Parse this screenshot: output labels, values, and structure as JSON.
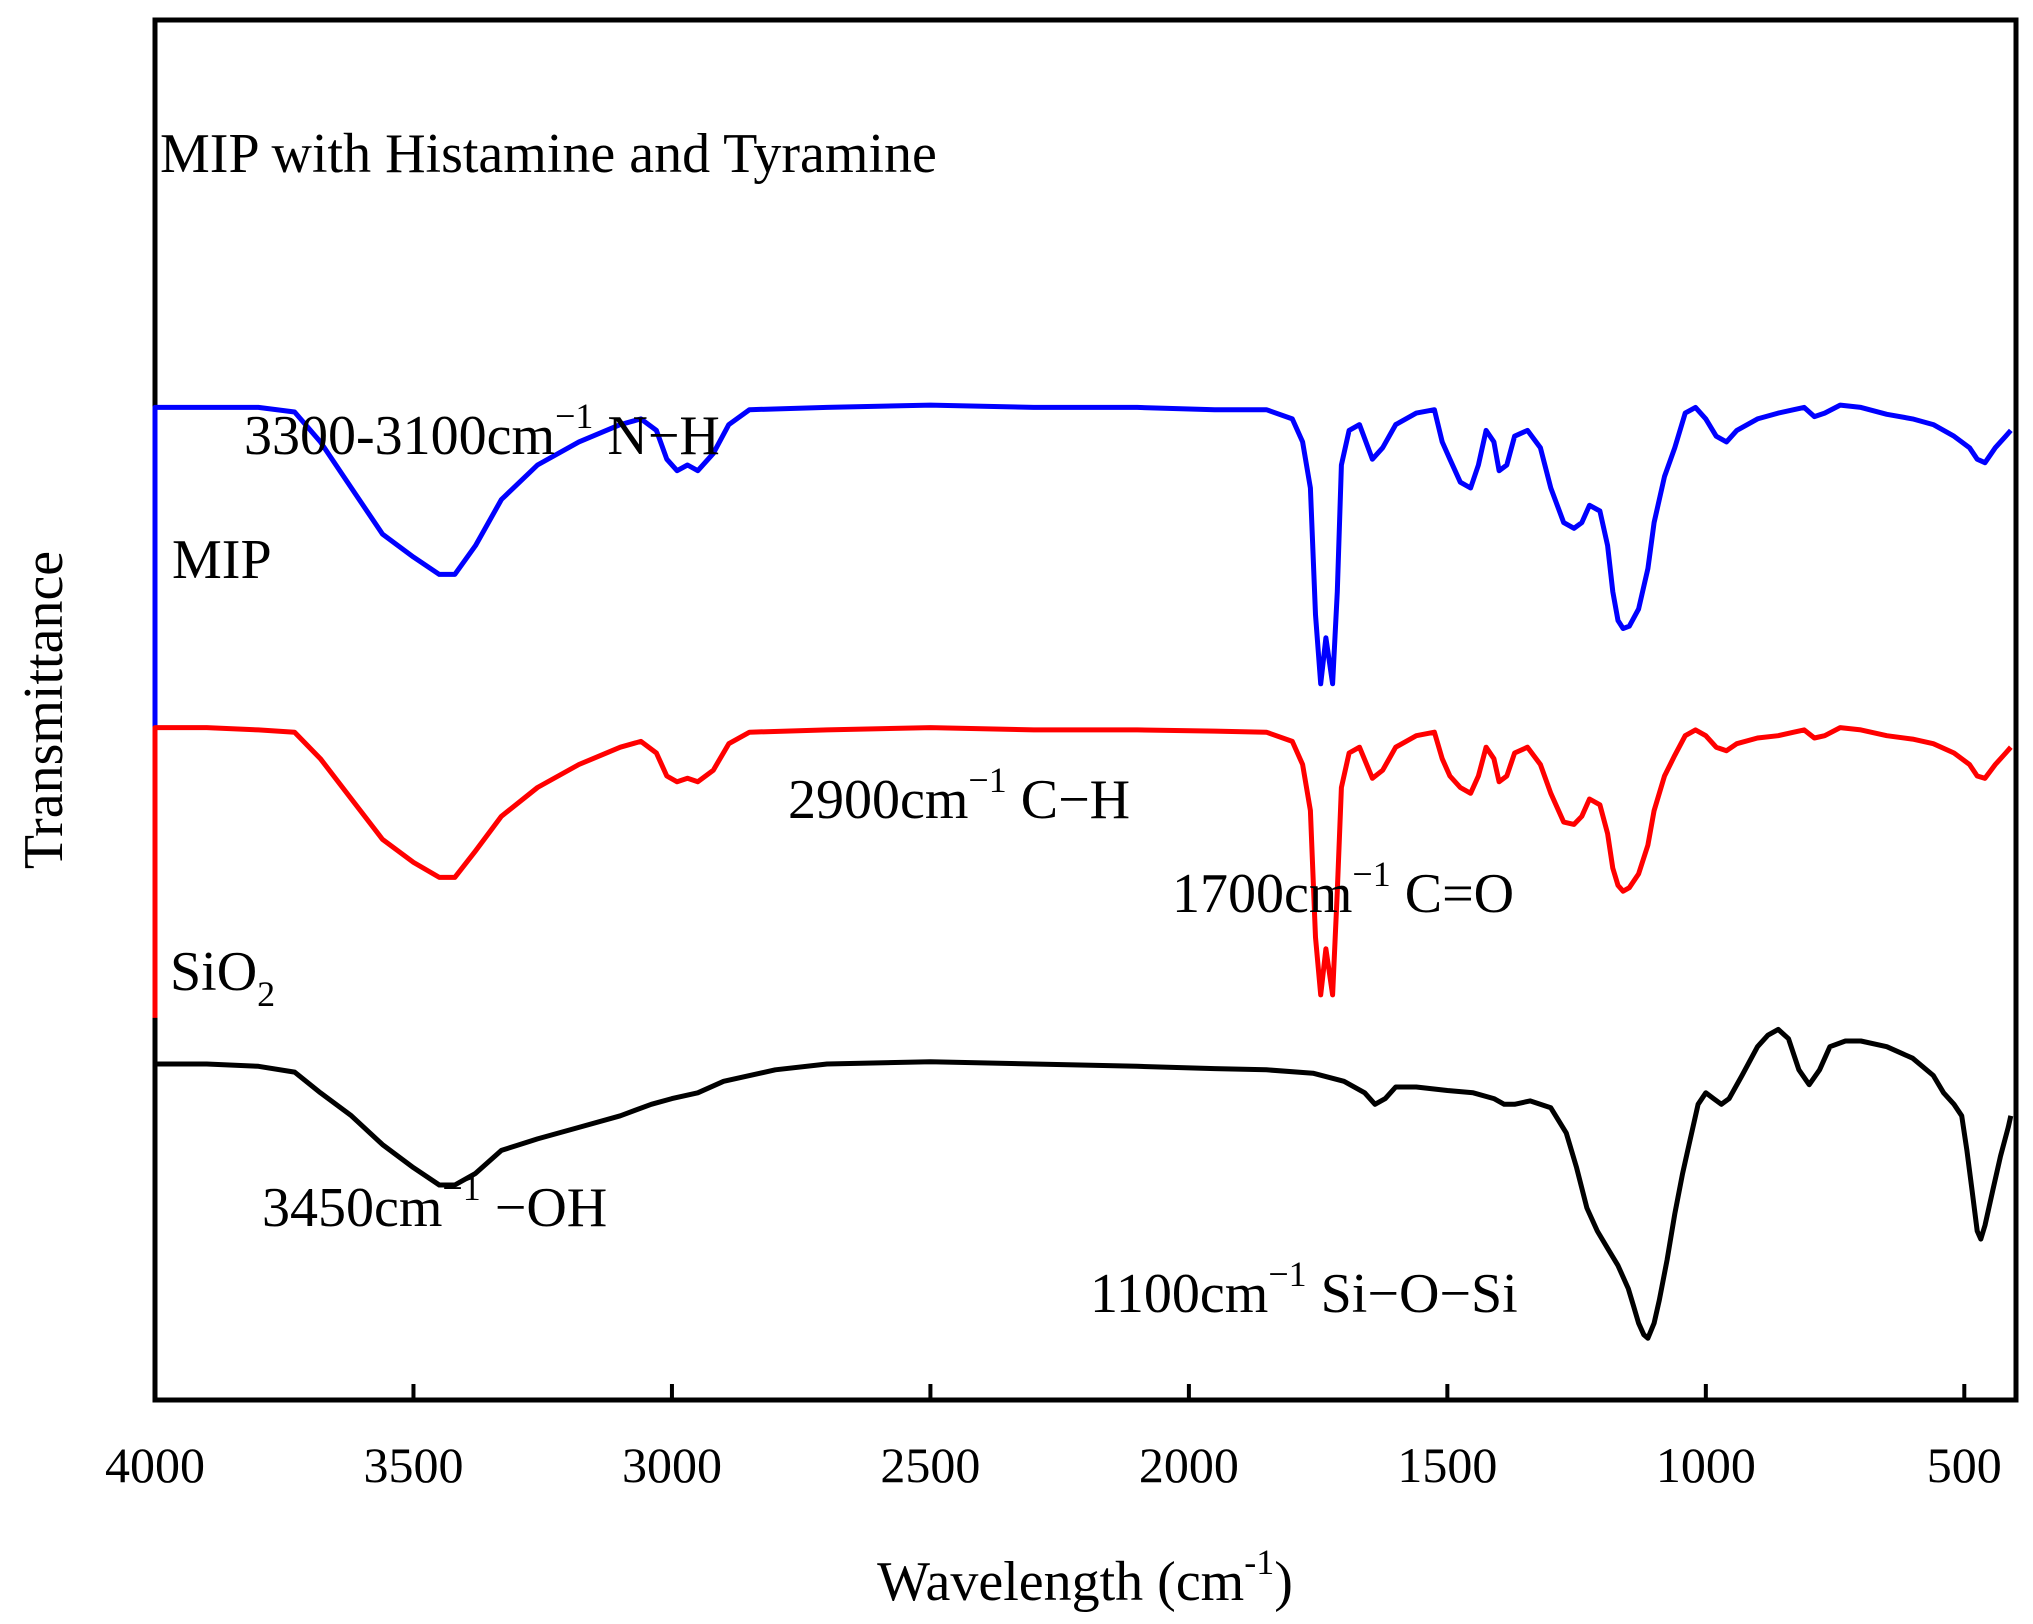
{
  "chart_data": {
    "type": "line",
    "title": "",
    "xlabel": {
      "main": "Wavelength (cm",
      "sup": "-1",
      "close": ")"
    },
    "ylabel": "Transmittance",
    "xlim": [
      4000,
      400
    ],
    "xticks": [
      "4000",
      "3500",
      "3000",
      "2500",
      "2000",
      "1500",
      "1000",
      "500"
    ],
    "xtick_values": [
      4000,
      3500,
      3000,
      2500,
      2000,
      1500,
      1000,
      500
    ],
    "y_units": "arbitrary (offset, larger = higher transmittance)",
    "ylim": [
      0,
      100
    ],
    "grid": false,
    "series": [
      {
        "name": "MIP with Histamine and Tyramine",
        "name_parts": {
          "main": "MIP with Histamine and Tyramine",
          "sub": ""
        },
        "color": "#0000ff",
        "baseline_start": 54,
        "points": [
          [
            4000,
            82
          ],
          [
            3900,
            82
          ],
          [
            3800,
            82
          ],
          [
            3730,
            81.6
          ],
          [
            3680,
            79
          ],
          [
            3620,
            75
          ],
          [
            3560,
            71
          ],
          [
            3500,
            69
          ],
          [
            3450,
            67.5
          ],
          [
            3420,
            67.5
          ],
          [
            3380,
            70
          ],
          [
            3330,
            74
          ],
          [
            3260,
            77
          ],
          [
            3180,
            79
          ],
          [
            3100,
            80.5
          ],
          [
            3060,
            81
          ],
          [
            3030,
            80
          ],
          [
            3010,
            77.5
          ],
          [
            2990,
            76.5
          ],
          [
            2970,
            77
          ],
          [
            2950,
            76.5
          ],
          [
            2920,
            78
          ],
          [
            2890,
            80.5
          ],
          [
            2850,
            81.8
          ],
          [
            2700,
            82
          ],
          [
            2500,
            82.2
          ],
          [
            2300,
            82
          ],
          [
            2100,
            82
          ],
          [
            1950,
            81.8
          ],
          [
            1850,
            81.8
          ],
          [
            1800,
            81
          ],
          [
            1780,
            79
          ],
          [
            1765,
            75
          ],
          [
            1755,
            64
          ],
          [
            1745,
            58
          ],
          [
            1735,
            62
          ],
          [
            1722,
            58
          ],
          [
            1713,
            66
          ],
          [
            1705,
            77
          ],
          [
            1690,
            80
          ],
          [
            1670,
            80.5
          ],
          [
            1645,
            77.5
          ],
          [
            1625,
            78.5
          ],
          [
            1600,
            80.5
          ],
          [
            1560,
            81.5
          ],
          [
            1525,
            81.8
          ],
          [
            1510,
            79
          ],
          [
            1495,
            77.5
          ],
          [
            1475,
            75.5
          ],
          [
            1455,
            75
          ],
          [
            1440,
            77
          ],
          [
            1425,
            80
          ],
          [
            1410,
            79
          ],
          [
            1400,
            76.5
          ],
          [
            1385,
            77
          ],
          [
            1370,
            79.5
          ],
          [
            1345,
            80
          ],
          [
            1320,
            78.5
          ],
          [
            1300,
            75
          ],
          [
            1275,
            72
          ],
          [
            1255,
            71.5
          ],
          [
            1240,
            72
          ],
          [
            1225,
            73.5
          ],
          [
            1205,
            73
          ],
          [
            1190,
            70
          ],
          [
            1180,
            66
          ],
          [
            1170,
            63.5
          ],
          [
            1160,
            62.8
          ],
          [
            1148,
            63
          ],
          [
            1130,
            64.5
          ],
          [
            1112,
            68
          ],
          [
            1100,
            72
          ],
          [
            1080,
            76
          ],
          [
            1060,
            78.5
          ],
          [
            1040,
            81.5
          ],
          [
            1020,
            82
          ],
          [
            1000,
            81
          ],
          [
            980,
            79.5
          ],
          [
            960,
            79
          ],
          [
            940,
            80
          ],
          [
            900,
            81
          ],
          [
            860,
            81.5
          ],
          [
            830,
            81.8
          ],
          [
            810,
            82
          ],
          [
            790,
            81.2
          ],
          [
            770,
            81.5
          ],
          [
            740,
            82.2
          ],
          [
            700,
            82
          ],
          [
            650,
            81.4
          ],
          [
            600,
            81
          ],
          [
            560,
            80.5
          ],
          [
            520,
            79.5
          ],
          [
            490,
            78.5
          ],
          [
            475,
            77.5
          ],
          [
            460,
            77.2
          ],
          [
            440,
            78.5
          ],
          [
            420,
            79.5
          ],
          [
            410,
            80
          ]
        ]
      },
      {
        "name": "MIP",
        "name_parts": {
          "main": "MIP",
          "sub": ""
        },
        "color": "#ff0000",
        "baseline_start": 29,
        "points": [
          [
            4000,
            54.2
          ],
          [
            3900,
            54.2
          ],
          [
            3800,
            54
          ],
          [
            3730,
            53.8
          ],
          [
            3680,
            51.5
          ],
          [
            3620,
            48
          ],
          [
            3560,
            44.5
          ],
          [
            3500,
            42.5
          ],
          [
            3450,
            41.2
          ],
          [
            3420,
            41.2
          ],
          [
            3380,
            43.5
          ],
          [
            3330,
            46.5
          ],
          [
            3260,
            49
          ],
          [
            3180,
            51
          ],
          [
            3100,
            52.5
          ],
          [
            3060,
            53
          ],
          [
            3030,
            52
          ],
          [
            3010,
            50
          ],
          [
            2990,
            49.5
          ],
          [
            2970,
            49.8
          ],
          [
            2950,
            49.5
          ],
          [
            2920,
            50.5
          ],
          [
            2890,
            52.8
          ],
          [
            2850,
            53.8
          ],
          [
            2700,
            54
          ],
          [
            2500,
            54.2
          ],
          [
            2300,
            54
          ],
          [
            2100,
            54
          ],
          [
            1950,
            53.9
          ],
          [
            1850,
            53.8
          ],
          [
            1800,
            53
          ],
          [
            1780,
            51
          ],
          [
            1765,
            47
          ],
          [
            1755,
            36
          ],
          [
            1745,
            31
          ],
          [
            1735,
            35
          ],
          [
            1722,
            31
          ],
          [
            1713,
            40
          ],
          [
            1705,
            49
          ],
          [
            1690,
            52
          ],
          [
            1670,
            52.5
          ],
          [
            1645,
            49.8
          ],
          [
            1625,
            50.5
          ],
          [
            1600,
            52.5
          ],
          [
            1560,
            53.5
          ],
          [
            1525,
            53.8
          ],
          [
            1510,
            51.5
          ],
          [
            1495,
            50
          ],
          [
            1475,
            49
          ],
          [
            1455,
            48.5
          ],
          [
            1440,
            50
          ],
          [
            1425,
            52.5
          ],
          [
            1410,
            51.5
          ],
          [
            1400,
            49.5
          ],
          [
            1385,
            50
          ],
          [
            1370,
            52
          ],
          [
            1345,
            52.5
          ],
          [
            1320,
            51
          ],
          [
            1300,
            48.5
          ],
          [
            1275,
            46
          ],
          [
            1255,
            45.8
          ],
          [
            1240,
            46.5
          ],
          [
            1225,
            48
          ],
          [
            1205,
            47.5
          ],
          [
            1190,
            45
          ],
          [
            1180,
            42
          ],
          [
            1170,
            40.5
          ],
          [
            1160,
            40
          ],
          [
            1148,
            40.3
          ],
          [
            1130,
            41.5
          ],
          [
            1112,
            44
          ],
          [
            1100,
            47
          ],
          [
            1080,
            50
          ],
          [
            1060,
            51.8
          ],
          [
            1040,
            53.5
          ],
          [
            1020,
            54
          ],
          [
            1000,
            53.5
          ],
          [
            980,
            52.5
          ],
          [
            960,
            52.2
          ],
          [
            940,
            52.8
          ],
          [
            900,
            53.3
          ],
          [
            860,
            53.5
          ],
          [
            830,
            53.8
          ],
          [
            810,
            54
          ],
          [
            790,
            53.3
          ],
          [
            770,
            53.5
          ],
          [
            740,
            54.2
          ],
          [
            700,
            54
          ],
          [
            650,
            53.5
          ],
          [
            600,
            53.2
          ],
          [
            560,
            52.8
          ],
          [
            520,
            52
          ],
          [
            490,
            51
          ],
          [
            475,
            50
          ],
          [
            460,
            49.8
          ],
          [
            440,
            51
          ],
          [
            420,
            52
          ],
          [
            410,
            52.5
          ]
        ]
      },
      {
        "name": "SiO",
        "name_parts": {
          "main": "SiO",
          "sub": "2"
        },
        "color": "#000000",
        "baseline_start": 0,
        "points": [
          [
            4000,
            25
          ],
          [
            3900,
            25
          ],
          [
            3800,
            24.8
          ],
          [
            3730,
            24.3
          ],
          [
            3680,
            22.5
          ],
          [
            3620,
            20.5
          ],
          [
            3560,
            18
          ],
          [
            3500,
            16
          ],
          [
            3450,
            14.5
          ],
          [
            3420,
            14.5
          ],
          [
            3380,
            15.5
          ],
          [
            3330,
            17.5
          ],
          [
            3260,
            18.5
          ],
          [
            3180,
            19.5
          ],
          [
            3100,
            20.5
          ],
          [
            3040,
            21.5
          ],
          [
            3000,
            22
          ],
          [
            2950,
            22.5
          ],
          [
            2900,
            23.5
          ],
          [
            2800,
            24.5
          ],
          [
            2700,
            25
          ],
          [
            2500,
            25.2
          ],
          [
            2300,
            25
          ],
          [
            2100,
            24.8
          ],
          [
            1950,
            24.6
          ],
          [
            1850,
            24.5
          ],
          [
            1760,
            24.2
          ],
          [
            1700,
            23.5
          ],
          [
            1660,
            22.5
          ],
          [
            1640,
            21.5
          ],
          [
            1620,
            22
          ],
          [
            1600,
            23
          ],
          [
            1560,
            23
          ],
          [
            1500,
            22.7
          ],
          [
            1450,
            22.5
          ],
          [
            1410,
            22
          ],
          [
            1390,
            21.5
          ],
          [
            1370,
            21.5
          ],
          [
            1340,
            21.8
          ],
          [
            1300,
            21.2
          ],
          [
            1270,
            19
          ],
          [
            1250,
            16
          ],
          [
            1230,
            12.5
          ],
          [
            1210,
            10.5
          ],
          [
            1190,
            9
          ],
          [
            1170,
            7.5
          ],
          [
            1150,
            5.5
          ],
          [
            1140,
            4
          ],
          [
            1130,
            2.5
          ],
          [
            1120,
            1.5
          ],
          [
            1112,
            1.2
          ],
          [
            1100,
            2.5
          ],
          [
            1090,
            4.5
          ],
          [
            1075,
            8
          ],
          [
            1060,
            12
          ],
          [
            1045,
            15.5
          ],
          [
            1030,
            18.5
          ],
          [
            1015,
            21.5
          ],
          [
            1000,
            22.5
          ],
          [
            985,
            22
          ],
          [
            970,
            21.5
          ],
          [
            955,
            22
          ],
          [
            930,
            24
          ],
          [
            900,
            26.5
          ],
          [
            880,
            27.5
          ],
          [
            860,
            28
          ],
          [
            840,
            27.2
          ],
          [
            820,
            24.5
          ],
          [
            800,
            23.2
          ],
          [
            780,
            24.5
          ],
          [
            760,
            26.5
          ],
          [
            730,
            27
          ],
          [
            700,
            27
          ],
          [
            650,
            26.5
          ],
          [
            600,
            25.5
          ],
          [
            560,
            24
          ],
          [
            540,
            22.5
          ],
          [
            520,
            21.5
          ],
          [
            505,
            20.5
          ],
          [
            495,
            17.5
          ],
          [
            485,
            14
          ],
          [
            475,
            10.5
          ],
          [
            468,
            9.8
          ],
          [
            460,
            11
          ],
          [
            445,
            14
          ],
          [
            430,
            17
          ],
          [
            415,
            19.5
          ],
          [
            410,
            20.5
          ]
        ]
      }
    ],
    "annotations": [
      {
        "main": "3300-3100cm",
        "sup": "−1",
        "rest": " N−H"
      },
      {
        "main": "2900cm",
        "sup": "−1",
        "rest": " C−H"
      },
      {
        "main": "1700cm",
        "sup": "−1",
        "rest": " C=O"
      },
      {
        "main": "3450cm",
        "sup": "−1",
        "rest": " −OH"
      },
      {
        "main": "1100cm",
        "sup": "−1",
        "rest": " Si−O−Si"
      }
    ]
  }
}
